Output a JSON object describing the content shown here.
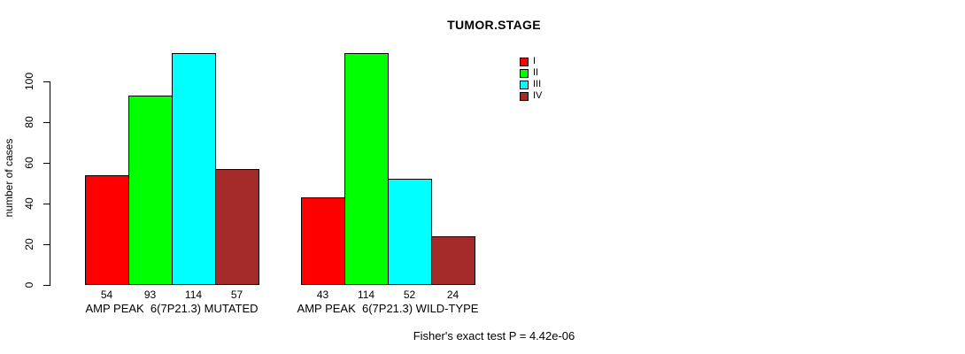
{
  "chart_data": {
    "type": "bar",
    "title": "TUMOR.STAGE",
    "ylabel": "number of cases",
    "xlabel": "",
    "ylim": [
      0,
      115
    ],
    "yticks": [
      0,
      20,
      40,
      60,
      80,
      100
    ],
    "grid": false,
    "legend_position": "top-right",
    "legend": [
      {
        "label": "I",
        "color": "#FF0000"
      },
      {
        "label": "II",
        "color": "#00FF00"
      },
      {
        "label": "III",
        "color": "#00FFFF"
      },
      {
        "label": "IV",
        "color": "#A52A2A"
      }
    ],
    "groups": [
      {
        "label": "AMP PEAK  6(7P21.3) MUTATED",
        "values": [
          54,
          93,
          114,
          57
        ]
      },
      {
        "label": "AMP PEAK  6(7P21.3) WILD-TYPE",
        "values": [
          43,
          114,
          52,
          24
        ]
      }
    ],
    "footnote": "Fisher's exact test P = 4.42e-06"
  }
}
